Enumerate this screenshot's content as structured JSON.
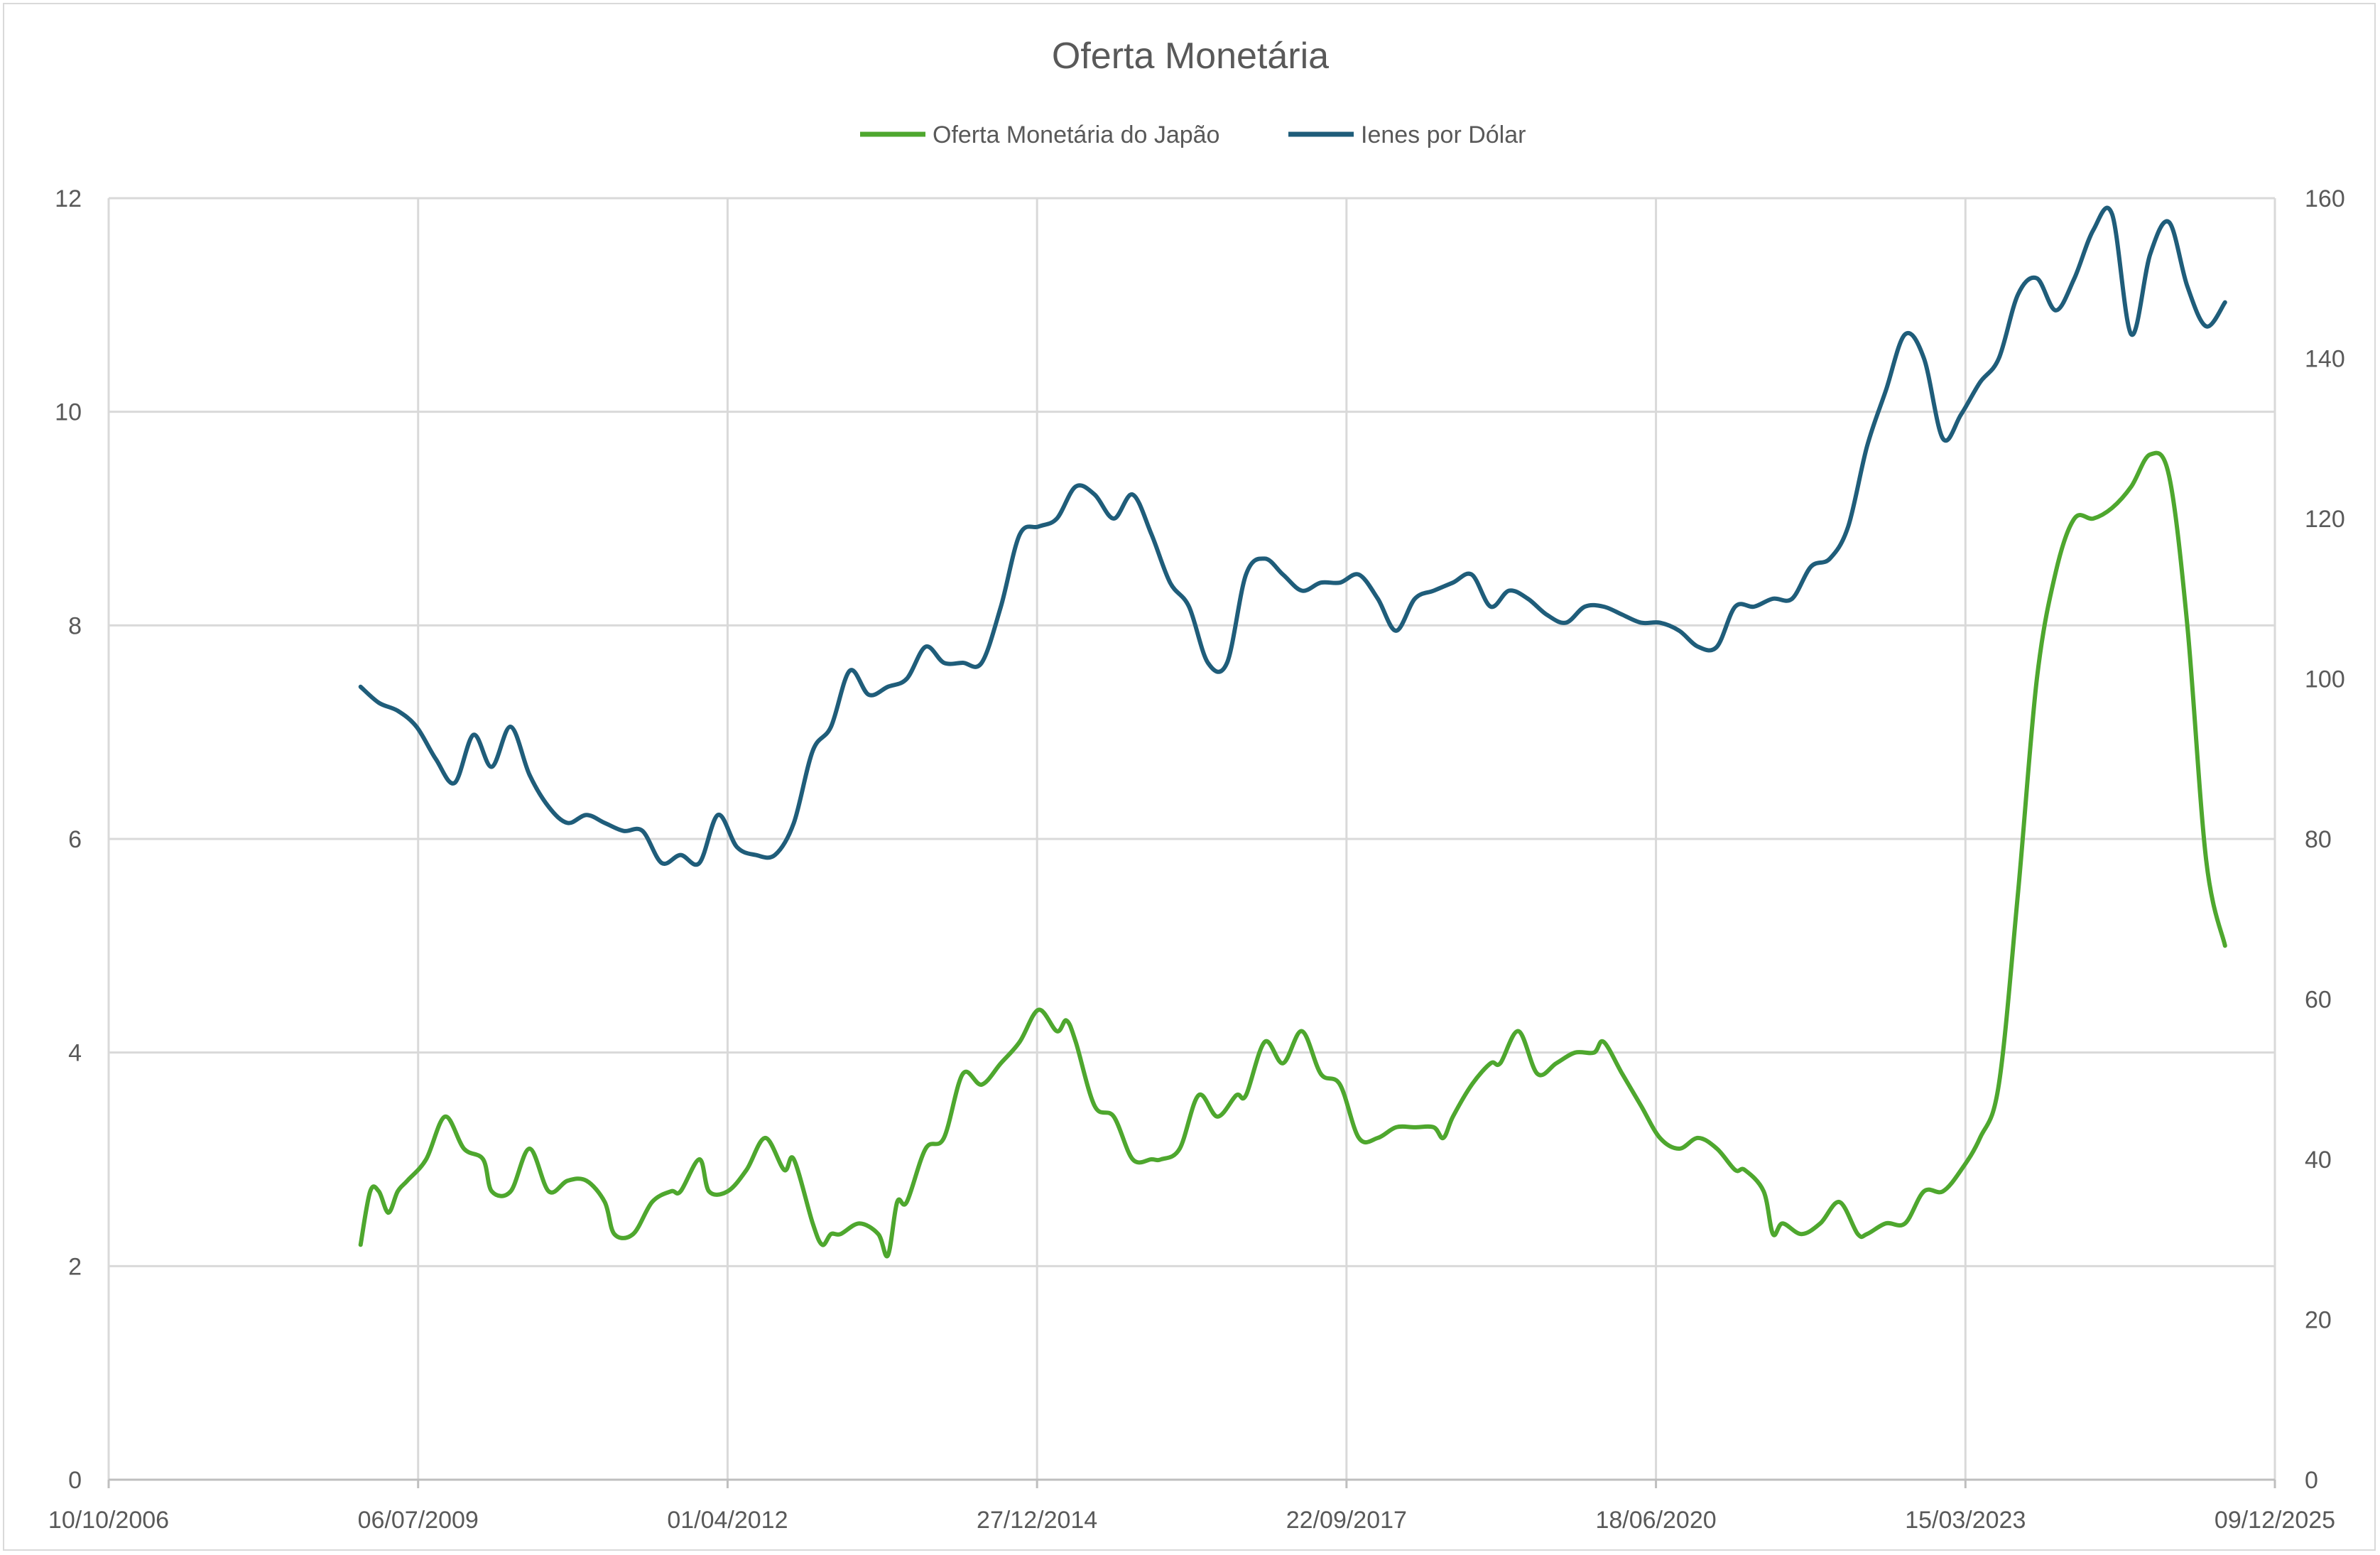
{
  "chart_data": {
    "type": "line",
    "title": "Oferta Monetária",
    "legend_position": "top",
    "grid": true,
    "x_axis": {
      "type": "date",
      "range": [
        "2006-10-10",
        "2025-12-09"
      ],
      "ticks": [
        "2006-10-10",
        "2009-07-06",
        "2012-04-01",
        "2014-12-27",
        "2017-09-22",
        "2020-06-18",
        "2023-03-15",
        "2025-12-09"
      ],
      "tick_labels": [
        "10/10/2006",
        "06/07/2009",
        "01/04/2012",
        "27/12/2014",
        "22/09/2017",
        "18/06/2020",
        "15/03/2023",
        "09/12/2025"
      ]
    },
    "y_left": {
      "range": [
        0,
        12
      ],
      "ticks": [
        0,
        2,
        4,
        6,
        8,
        10,
        12
      ]
    },
    "y_right": {
      "range": [
        0,
        160
      ],
      "ticks": [
        0,
        20,
        40,
        60,
        80,
        100,
        120,
        140,
        160
      ]
    },
    "series": [
      {
        "name": "Oferta Monetária do Japão",
        "axis": "left",
        "color": "#4ea72e",
        "points": [
          [
            "2009-01-01",
            2.2
          ],
          [
            "2009-02-01",
            2.7
          ],
          [
            "2009-03-01",
            2.7
          ],
          [
            "2009-04-01",
            2.5
          ],
          [
            "2009-05-01",
            2.7
          ],
          [
            "2009-06-01",
            2.8
          ],
          [
            "2009-08-01",
            3.0
          ],
          [
            "2009-10-01",
            3.4
          ],
          [
            "2009-12-01",
            3.1
          ],
          [
            "2010-02-01",
            3.0
          ],
          [
            "2010-03-01",
            2.7
          ],
          [
            "2010-05-01",
            2.7
          ],
          [
            "2010-07-01",
            3.1
          ],
          [
            "2010-09-01",
            2.7
          ],
          [
            "2010-11-01",
            2.8
          ],
          [
            "2011-01-01",
            2.8
          ],
          [
            "2011-03-01",
            2.6
          ],
          [
            "2011-04-01",
            2.3
          ],
          [
            "2011-06-01",
            2.3
          ],
          [
            "2011-08-01",
            2.6
          ],
          [
            "2011-10-01",
            2.7
          ],
          [
            "2011-11-01",
            2.7
          ],
          [
            "2012-01-01",
            3.0
          ],
          [
            "2012-02-01",
            2.7
          ],
          [
            "2012-04-01",
            2.7
          ],
          [
            "2012-06-01",
            2.9
          ],
          [
            "2012-08-01",
            3.2
          ],
          [
            "2012-10-01",
            2.9
          ],
          [
            "2012-11-01",
            3.0
          ],
          [
            "2013-01-01",
            2.4
          ],
          [
            "2013-02-01",
            2.2
          ],
          [
            "2013-03-01",
            2.3
          ],
          [
            "2013-04-01",
            2.3
          ],
          [
            "2013-06-01",
            2.4
          ],
          [
            "2013-08-01",
            2.3
          ],
          [
            "2013-09-01",
            2.1
          ],
          [
            "2013-10-01",
            2.6
          ],
          [
            "2013-11-01",
            2.6
          ],
          [
            "2014-01-01",
            3.1
          ],
          [
            "2014-03-01",
            3.2
          ],
          [
            "2014-05-01",
            3.8
          ],
          [
            "2014-07-01",
            3.7
          ],
          [
            "2014-09-01",
            3.9
          ],
          [
            "2014-11-01",
            4.1
          ],
          [
            "2015-01-01",
            4.4
          ],
          [
            "2015-03-01",
            4.2
          ],
          [
            "2015-04-01",
            4.3
          ],
          [
            "2015-05-01",
            4.1
          ],
          [
            "2015-07-01",
            3.5
          ],
          [
            "2015-09-01",
            3.4
          ],
          [
            "2015-11-01",
            3.0
          ],
          [
            "2016-01-01",
            3.0
          ],
          [
            "2016-02-01",
            3.0
          ],
          [
            "2016-04-01",
            3.1
          ],
          [
            "2016-06-01",
            3.6
          ],
          [
            "2016-08-01",
            3.4
          ],
          [
            "2016-10-01",
            3.6
          ],
          [
            "2016-11-01",
            3.6
          ],
          [
            "2017-01-01",
            4.1
          ],
          [
            "2017-03-01",
            3.9
          ],
          [
            "2017-05-01",
            4.2
          ],
          [
            "2017-07-01",
            3.8
          ],
          [
            "2017-09-01",
            3.7
          ],
          [
            "2017-11-01",
            3.2
          ],
          [
            "2018-01-01",
            3.2
          ],
          [
            "2018-03-01",
            3.3
          ],
          [
            "2018-05-01",
            3.3
          ],
          [
            "2018-07-01",
            3.3
          ],
          [
            "2018-08-01",
            3.2
          ],
          [
            "2018-09-01",
            3.4
          ],
          [
            "2018-11-01",
            3.7
          ],
          [
            "2019-01-01",
            3.9
          ],
          [
            "2019-02-01",
            3.9
          ],
          [
            "2019-04-01",
            4.2
          ],
          [
            "2019-06-01",
            3.8
          ],
          [
            "2019-08-01",
            3.9
          ],
          [
            "2019-10-01",
            4.0
          ],
          [
            "2019-12-01",
            4.0
          ],
          [
            "2020-01-01",
            4.1
          ],
          [
            "2020-03-01",
            3.8
          ],
          [
            "2020-05-01",
            3.5
          ],
          [
            "2020-07-01",
            3.2
          ],
          [
            "2020-09-01",
            3.1
          ],
          [
            "2020-11-01",
            3.2
          ],
          [
            "2021-01-01",
            3.1
          ],
          [
            "2021-03-01",
            2.9
          ],
          [
            "2021-04-01",
            2.9
          ],
          [
            "2021-06-01",
            2.7
          ],
          [
            "2021-07-01",
            2.3
          ],
          [
            "2021-08-01",
            2.4
          ],
          [
            "2021-10-01",
            2.3
          ],
          [
            "2021-12-01",
            2.4
          ],
          [
            "2022-02-01",
            2.6
          ],
          [
            "2022-04-01",
            2.3
          ],
          [
            "2022-05-01",
            2.3
          ],
          [
            "2022-07-01",
            2.4
          ],
          [
            "2022-09-01",
            2.4
          ],
          [
            "2022-11-01",
            2.7
          ],
          [
            "2023-01-01",
            2.7
          ],
          [
            "2023-03-01",
            2.9
          ],
          [
            "2023-05-01",
            3.2
          ],
          [
            "2023-07-01",
            3.7
          ],
          [
            "2023-09-01",
            5.5
          ],
          [
            "2023-11-01",
            7.5
          ],
          [
            "2024-01-01",
            8.5
          ],
          [
            "2024-03-01",
            9.0
          ],
          [
            "2024-05-01",
            9.0
          ],
          [
            "2024-07-01",
            9.1
          ],
          [
            "2024-09-01",
            9.3
          ],
          [
            "2024-11-01",
            9.6
          ],
          [
            "2025-01-01",
            9.4
          ],
          [
            "2025-03-01",
            8.0
          ],
          [
            "2025-05-01",
            5.8
          ],
          [
            "2025-07-01",
            5.0
          ]
        ]
      },
      {
        "name": "Ienes por Dólar",
        "axis": "right",
        "color": "#1f5d7a",
        "points": [
          [
            "2009-01-01",
            99
          ],
          [
            "2009-03-01",
            97
          ],
          [
            "2009-05-01",
            96
          ],
          [
            "2009-07-01",
            94
          ],
          [
            "2009-09-01",
            90
          ],
          [
            "2009-11-01",
            87
          ],
          [
            "2010-01-01",
            93
          ],
          [
            "2010-03-01",
            89
          ],
          [
            "2010-05-01",
            94
          ],
          [
            "2010-07-01",
            88
          ],
          [
            "2010-09-01",
            84
          ],
          [
            "2010-11-01",
            82
          ],
          [
            "2011-01-01",
            83
          ],
          [
            "2011-03-01",
            82
          ],
          [
            "2011-05-01",
            81
          ],
          [
            "2011-07-01",
            81
          ],
          [
            "2011-09-01",
            77
          ],
          [
            "2011-11-01",
            78
          ],
          [
            "2012-01-01",
            77
          ],
          [
            "2012-03-01",
            83
          ],
          [
            "2012-05-01",
            79
          ],
          [
            "2012-07-01",
            78
          ],
          [
            "2012-09-01",
            78
          ],
          [
            "2012-11-01",
            82
          ],
          [
            "2013-01-01",
            91
          ],
          [
            "2013-03-01",
            94
          ],
          [
            "2013-05-01",
            101
          ],
          [
            "2013-07-01",
            98
          ],
          [
            "2013-09-01",
            99
          ],
          [
            "2013-11-01",
            100
          ],
          [
            "2014-01-01",
            104
          ],
          [
            "2014-03-01",
            102
          ],
          [
            "2014-05-01",
            102
          ],
          [
            "2014-07-01",
            102
          ],
          [
            "2014-09-01",
            109
          ],
          [
            "2014-11-01",
            118
          ],
          [
            "2015-01-01",
            119
          ],
          [
            "2015-03-01",
            120
          ],
          [
            "2015-05-01",
            124
          ],
          [
            "2015-07-01",
            123
          ],
          [
            "2015-09-01",
            120
          ],
          [
            "2015-11-01",
            123
          ],
          [
            "2016-01-01",
            118
          ],
          [
            "2016-03-01",
            112
          ],
          [
            "2016-05-01",
            109
          ],
          [
            "2016-07-01",
            102
          ],
          [
            "2016-09-01",
            102
          ],
          [
            "2016-11-01",
            113
          ],
          [
            "2017-01-01",
            115
          ],
          [
            "2017-03-01",
            113
          ],
          [
            "2017-05-01",
            111
          ],
          [
            "2017-07-01",
            112
          ],
          [
            "2017-09-01",
            112
          ],
          [
            "2017-11-01",
            113
          ],
          [
            "2018-01-01",
            110
          ],
          [
            "2018-03-01",
            106
          ],
          [
            "2018-05-01",
            110
          ],
          [
            "2018-07-01",
            111
          ],
          [
            "2018-09-01",
            112
          ],
          [
            "2018-11-01",
            113
          ],
          [
            "2019-01-01",
            109
          ],
          [
            "2019-03-01",
            111
          ],
          [
            "2019-05-01",
            110
          ],
          [
            "2019-07-01",
            108
          ],
          [
            "2019-09-01",
            107
          ],
          [
            "2019-11-01",
            109
          ],
          [
            "2020-01-01",
            109
          ],
          [
            "2020-03-01",
            108
          ],
          [
            "2020-05-01",
            107
          ],
          [
            "2020-07-01",
            107
          ],
          [
            "2020-09-01",
            106
          ],
          [
            "2020-11-01",
            104
          ],
          [
            "2021-01-01",
            104
          ],
          [
            "2021-03-01",
            109
          ],
          [
            "2021-05-01",
            109
          ],
          [
            "2021-07-01",
            110
          ],
          [
            "2021-09-01",
            110
          ],
          [
            "2021-11-01",
            114
          ],
          [
            "2022-01-01",
            115
          ],
          [
            "2022-03-01",
            119
          ],
          [
            "2022-05-01",
            129
          ],
          [
            "2022-07-01",
            136
          ],
          [
            "2022-09-01",
            143
          ],
          [
            "2022-11-01",
            140
          ],
          [
            "2023-01-01",
            130
          ],
          [
            "2023-03-01",
            133
          ],
          [
            "2023-05-01",
            137
          ],
          [
            "2023-07-01",
            140
          ],
          [
            "2023-09-01",
            148
          ],
          [
            "2023-11-01",
            150
          ],
          [
            "2024-01-01",
            146
          ],
          [
            "2024-03-01",
            150
          ],
          [
            "2024-05-01",
            156
          ],
          [
            "2024-07-01",
            158
          ],
          [
            "2024-09-01",
            143
          ],
          [
            "2024-11-01",
            153
          ],
          [
            "2025-01-01",
            157
          ],
          [
            "2025-03-01",
            149
          ],
          [
            "2025-05-01",
            144
          ],
          [
            "2025-07-01",
            147
          ]
        ]
      }
    ]
  }
}
